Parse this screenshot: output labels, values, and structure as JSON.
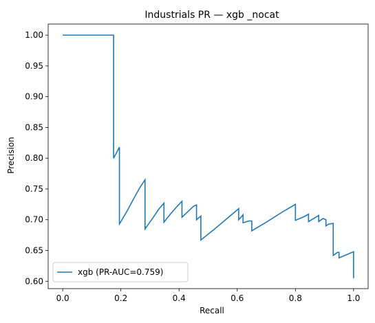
{
  "chart_data": {
    "type": "line",
    "title": "Industrials PR — xgb _nocat",
    "xlabel": "Recall",
    "ylabel": "Precision",
    "xlim": [
      -0.05,
      1.05
    ],
    "ylim": [
      0.588,
      1.018
    ],
    "xticks": [
      0.0,
      0.2,
      0.4,
      0.6,
      0.8,
      1.0
    ],
    "xtick_labels": [
      "0.0",
      "0.2",
      "0.4",
      "0.6",
      "0.8",
      "1.0"
    ],
    "yticks": [
      0.6,
      0.65,
      0.7,
      0.75,
      0.8,
      0.85,
      0.9,
      0.95,
      1.0
    ],
    "ytick_labels": [
      "0.60",
      "0.65",
      "0.70",
      "0.75",
      "0.80",
      "0.85",
      "0.90",
      "0.95",
      "1.00"
    ],
    "grid": false,
    "legend_position": "lower-left",
    "series": [
      {
        "name": "xgb (PR-AUC=0.759)",
        "color": "#1f77b4",
        "points": [
          [
            0.0,
            1.0
          ],
          [
            0.175,
            1.0
          ],
          [
            0.175,
            0.8
          ],
          [
            0.195,
            0.818
          ],
          [
            0.195,
            0.693
          ],
          [
            0.22,
            0.713
          ],
          [
            0.245,
            0.735
          ],
          [
            0.265,
            0.752
          ],
          [
            0.283,
            0.765
          ],
          [
            0.283,
            0.685
          ],
          [
            0.31,
            0.703
          ],
          [
            0.33,
            0.717
          ],
          [
            0.348,
            0.727
          ],
          [
            0.348,
            0.696
          ],
          [
            0.37,
            0.709
          ],
          [
            0.39,
            0.72
          ],
          [
            0.41,
            0.73
          ],
          [
            0.41,
            0.704
          ],
          [
            0.43,
            0.713
          ],
          [
            0.45,
            0.722
          ],
          [
            0.46,
            0.724
          ],
          [
            0.46,
            0.7
          ],
          [
            0.475,
            0.706
          ],
          [
            0.475,
            0.667
          ],
          [
            0.52,
            0.684
          ],
          [
            0.56,
            0.7
          ],
          [
            0.605,
            0.718
          ],
          [
            0.605,
            0.7
          ],
          [
            0.62,
            0.708
          ],
          [
            0.62,
            0.695
          ],
          [
            0.64,
            0.698
          ],
          [
            0.65,
            0.698
          ],
          [
            0.65,
            0.682
          ],
          [
            0.7,
            0.696
          ],
          [
            0.75,
            0.711
          ],
          [
            0.8,
            0.725
          ],
          [
            0.8,
            0.699
          ],
          [
            0.83,
            0.705
          ],
          [
            0.845,
            0.709
          ],
          [
            0.845,
            0.697
          ],
          [
            0.87,
            0.704
          ],
          [
            0.88,
            0.707
          ],
          [
            0.88,
            0.697
          ],
          [
            0.895,
            0.702
          ],
          [
            0.905,
            0.7
          ],
          [
            0.905,
            0.69
          ],
          [
            0.915,
            0.693
          ],
          [
            0.93,
            0.694
          ],
          [
            0.93,
            0.642
          ],
          [
            0.945,
            0.647
          ],
          [
            0.95,
            0.647
          ],
          [
            0.95,
            0.638
          ],
          [
            1.0,
            0.648
          ],
          [
            1.0,
            0.605
          ]
        ]
      }
    ]
  }
}
